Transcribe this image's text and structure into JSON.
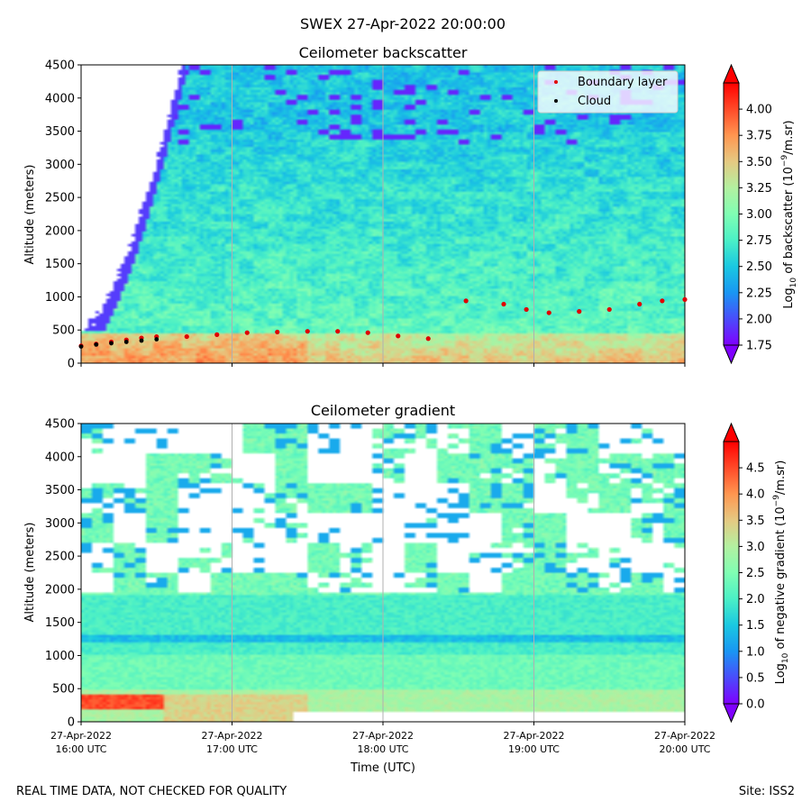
{
  "figure": {
    "title": "SWEX 27-Apr-2022 20:00:00",
    "footer_left": "REAL TIME DATA, NOT CHECKED FOR QUALITY",
    "footer_right": "Site: ISS2"
  },
  "colors": {
    "cmap": [
      "#7f00ff",
      "#4a4cfb",
      "#1996f3",
      "#1ac8e1",
      "#4bf0c6",
      "#80feb3",
      "#b3f0a0",
      "#e5c982",
      "#ff9650",
      "#ff4a28",
      "#ff0000"
    ],
    "boundary_layer": "#e00000",
    "cloud": "#000000",
    "grid": "#b0b0b0"
  },
  "chart_data": [
    {
      "type": "heatmap",
      "title": "Ceilometer backscatter",
      "xlabel": "",
      "ylabel": "Altitude (meters)",
      "ylim": [
        0,
        4500
      ],
      "yticks": [
        "0",
        "500",
        "1000",
        "1500",
        "2000",
        "2500",
        "3000",
        "3500",
        "4000",
        "4500"
      ],
      "xlim_hours": [
        16,
        20
      ],
      "vmin": 1.75,
      "vmax": 4.25,
      "colorbar": {
        "label_prefix": "Log",
        "label_sub": "10",
        "label_mid": " of backscatter (10",
        "label_sup": "−9",
        "label_suffix": "/m.sr)",
        "ticks": [
          "1.75",
          "2.00",
          "2.25",
          "2.50",
          "2.75",
          "3.00",
          "3.25",
          "3.50",
          "3.75",
          "4.00"
        ],
        "extend": "both"
      },
      "legend": {
        "location": "top-right",
        "entries": [
          {
            "name": "Boundary layer",
            "color": "#e00000"
          },
          {
            "name": "Cloud",
            "color": "#000000"
          }
        ]
      },
      "boundary_layer": [
        {
          "t": 16.0,
          "alt": 260
        },
        {
          "t": 16.1,
          "alt": 290
        },
        {
          "t": 16.2,
          "alt": 320
        },
        {
          "t": 16.3,
          "alt": 350
        },
        {
          "t": 16.4,
          "alt": 380
        },
        {
          "t": 16.5,
          "alt": 400
        },
        {
          "t": 16.7,
          "alt": 400
        },
        {
          "t": 16.9,
          "alt": 430
        },
        {
          "t": 17.1,
          "alt": 460
        },
        {
          "t": 17.3,
          "alt": 470
        },
        {
          "t": 17.5,
          "alt": 480
        },
        {
          "t": 17.7,
          "alt": 480
        },
        {
          "t": 17.9,
          "alt": 460
        },
        {
          "t": 18.1,
          "alt": 410
        },
        {
          "t": 18.3,
          "alt": 370
        },
        {
          "t": 18.55,
          "alt": 940
        },
        {
          "t": 18.8,
          "alt": 890
        },
        {
          "t": 18.95,
          "alt": 810
        },
        {
          "t": 19.1,
          "alt": 760
        },
        {
          "t": 19.3,
          "alt": 780
        },
        {
          "t": 19.5,
          "alt": 810
        },
        {
          "t": 19.7,
          "alt": 890
        },
        {
          "t": 19.85,
          "alt": 940
        },
        {
          "t": 20.0,
          "alt": 960
        }
      ],
      "cloud": [
        {
          "t": 16.0,
          "alt": 250
        },
        {
          "t": 16.1,
          "alt": 280
        },
        {
          "t": 16.2,
          "alt": 300
        },
        {
          "t": 16.3,
          "alt": 320
        },
        {
          "t": 16.4,
          "alt": 340
        },
        {
          "t": 16.5,
          "alt": 360
        }
      ]
    },
    {
      "type": "heatmap",
      "title": "Ceilometer gradient",
      "xlabel": "Time (UTC)",
      "ylabel": "Altitude (meters)",
      "ylim": [
        0,
        4500
      ],
      "yticks": [
        "0",
        "500",
        "1000",
        "1500",
        "2000",
        "2500",
        "3000",
        "3500",
        "4000",
        "4500"
      ],
      "xlim_hours": [
        16,
        20
      ],
      "xticks": [
        {
          "date": "27-Apr-2022",
          "time": "16:00 UTC"
        },
        {
          "date": "27-Apr-2022",
          "time": "17:00 UTC"
        },
        {
          "date": "27-Apr-2022",
          "time": "18:00 UTC"
        },
        {
          "date": "27-Apr-2022",
          "time": "19:00 UTC"
        },
        {
          "date": "27-Apr-2022",
          "time": "20:00 UTC"
        }
      ],
      "vmin": 0.0,
      "vmax": 5.0,
      "colorbar": {
        "label_prefix": "Log",
        "label_sub": "10",
        "label_mid": " of negative gradient (10",
        "label_sup": "−9",
        "label_suffix": "/m.sr)",
        "ticks": [
          "0.0",
          "0.5",
          "1.0",
          "1.5",
          "2.0",
          "2.5",
          "3.0",
          "3.5",
          "4.0",
          "4.5"
        ],
        "extend": "both"
      }
    }
  ]
}
